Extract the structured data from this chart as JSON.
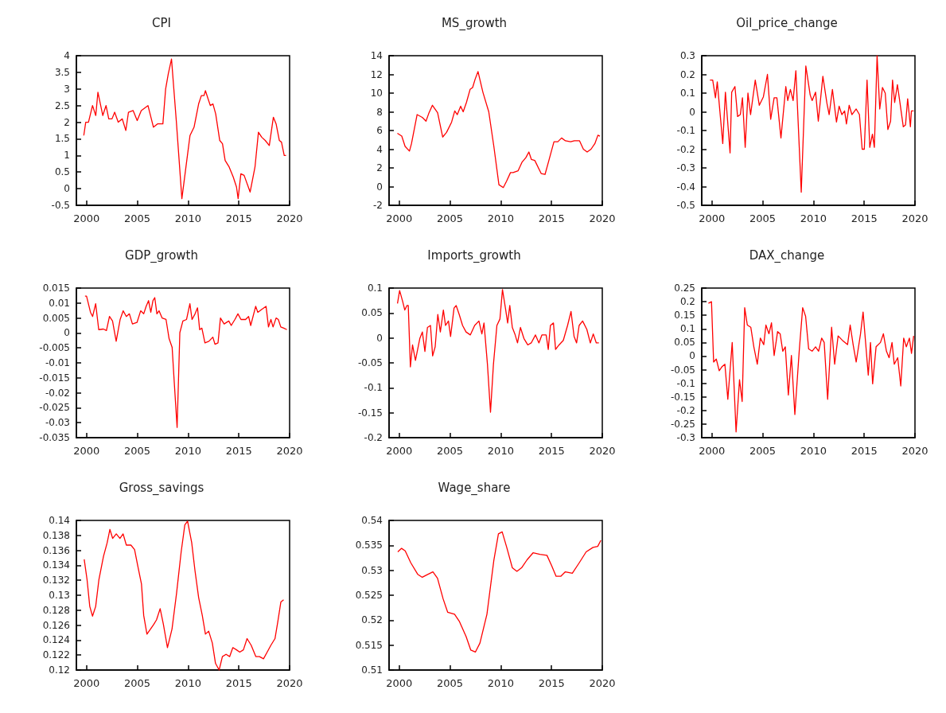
{
  "chart_data": [
    {
      "type": "line",
      "title": "CPI",
      "color": "#ff0000",
      "xlim": [
        1999,
        2020
      ],
      "xticks": [
        2000,
        2005,
        2010,
        2015,
        2020
      ],
      "ylim": [
        -0.5,
        4
      ],
      "yticks": [
        -0.5,
        0,
        0.5,
        1,
        1.5,
        2,
        2.5,
        3,
        3.5,
        4
      ],
      "grid": false,
      "x": [
        1999.73,
        1999.92,
        2000.19,
        2000.59,
        2000.91,
        2001.12,
        2001.6,
        2001.92,
        2002.19,
        2002.51,
        2002.77,
        2003.12,
        2003.52,
        2003.87,
        2004.13,
        2004.59,
        2004.99,
        2005.39,
        2006.05,
        2006.59,
        2006.99,
        2007.52,
        2007.79,
        2008.05,
        2008.37,
        2008.85,
        2009.39,
        2009.79,
        2010.19,
        2010.59,
        2011.04,
        2011.31,
        2011.57,
        2011.71,
        2011.92,
        2012.19,
        2012.45,
        2012.72,
        2013.12,
        2013.39,
        2013.65,
        2014.05,
        2014.45,
        2014.77,
        2014.93,
        2015.2,
        2015.52,
        2016.11,
        2016.59,
        2016.93,
        2017.25,
        2017.6,
        2018,
        2018.4,
        2018.67,
        2018.99,
        2019.2,
        2019.47,
        2019.65
      ],
      "values": [
        1.6,
        2.0,
        2.0,
        2.5,
        2.2,
        2.9,
        2.2,
        2.5,
        2.1,
        2.1,
        2.3,
        2.0,
        2.1,
        1.75,
        2.3,
        2.35,
        2.05,
        2.35,
        2.5,
        1.85,
        1.95,
        1.95,
        3.0,
        3.45,
        3.9,
        2.0,
        -0.3,
        0.65,
        1.6,
        1.85,
        2.55,
        2.8,
        2.8,
        2.95,
        2.75,
        2.5,
        2.55,
        2.25,
        1.45,
        1.35,
        0.85,
        0.65,
        0.35,
        0.05,
        -0.3,
        0.45,
        0.4,
        -0.1,
        0.65,
        1.7,
        1.55,
        1.45,
        1.3,
        2.15,
        1.95,
        1.45,
        1.4,
        1.0,
        1.0
      ]
    },
    {
      "type": "line",
      "title": "MS_growth",
      "color": "#ff0000",
      "xlim": [
        1999,
        2020
      ],
      "xticks": [
        2000,
        2005,
        2010,
        2015,
        2020
      ],
      "ylim": [
        -2,
        14
      ],
      "yticks": [
        -2,
        0,
        2,
        4,
        6,
        8,
        10,
        12,
        14
      ],
      "grid": false,
      "x": [
        1999.82,
        2000.25,
        2000.58,
        2001.01,
        2001.21,
        2001.76,
        2002.27,
        2002.64,
        2002.9,
        2003.27,
        2003.78,
        2004.28,
        2004.66,
        2005.16,
        2005.47,
        2005.72,
        2006.05,
        2006.3,
        2006.62,
        2006.98,
        2007.23,
        2007.48,
        2007.76,
        2008.24,
        2008.82,
        2009.32,
        2009.82,
        2010.25,
        2010.58,
        2010.96,
        2011.21,
        2011.71,
        2012.09,
        2012.47,
        2012.77,
        2013.02,
        2013.35,
        2013.98,
        2014.36,
        2014.74,
        2015.24,
        2015.62,
        2015.99,
        2016.37,
        2016.88,
        2017.25,
        2017.76,
        2018.14,
        2018.51,
        2018.89,
        2019.27,
        2019.57,
        2019.77
      ],
      "values": [
        5.7,
        5.4,
        4.3,
        3.8,
        4.6,
        7.7,
        7.4,
        7.0,
        7.8,
        8.7,
        7.9,
        5.3,
        5.8,
        6.9,
        8.1,
        7.7,
        8.6,
        8.0,
        9.0,
        10.4,
        10.6,
        11.5,
        12.3,
        10.1,
        8.0,
        4.3,
        0.2,
        -0.1,
        0.6,
        1.5,
        1.5,
        1.7,
        2.6,
        3.1,
        3.7,
        2.9,
        2.8,
        1.4,
        1.3,
        2.8,
        4.8,
        4.8,
        5.2,
        4.9,
        4.8,
        4.9,
        4.9,
        4.0,
        3.7,
        4.0,
        4.6,
        5.5,
        5.4
      ]
    },
    {
      "type": "line",
      "title": "Oil_price_change",
      "color": "#ff0000",
      "xlim": [
        1999,
        2020
      ],
      "xticks": [
        2000,
        2005,
        2010,
        2015,
        2020
      ],
      "ylim": [
        -0.5,
        0.3
      ],
      "yticks": [
        -0.5,
        -0.4,
        -0.3,
        -0.2,
        -0.1,
        0,
        0.1,
        0.2,
        0.3
      ],
      "grid": false,
      "x": [
        1999.81,
        2000.08,
        2000.35,
        2000.53,
        2001.07,
        2001.33,
        2001.79,
        2001.95,
        2002.27,
        2002.53,
        2002.8,
        2003.01,
        2003.28,
        2003.55,
        2003.81,
        2004.27,
        2004.67,
        2005.07,
        2005.47,
        2005.79,
        2006.13,
        2006.4,
        2006.8,
        2007.28,
        2007.47,
        2007.73,
        2008,
        2008.27,
        2008.8,
        2009.25,
        2009.68,
        2009.87,
        2010.21,
        2010.48,
        2010.93,
        2011.33,
        2011.55,
        2011.87,
        2012.27,
        2012.53,
        2012.8,
        2013.07,
        2013.25,
        2013.52,
        2013.79,
        2014.21,
        2014.53,
        2014.8,
        2015.01,
        2015.28,
        2015.55,
        2015.81,
        2016,
        2016.27,
        2016.53,
        2016.8,
        2017.07,
        2017.33,
        2017.6,
        2017.79,
        2018,
        2018.27,
        2018.53,
        2018.85,
        2019.07,
        2019.28,
        2019.55,
        2019.65,
        2019.87
      ],
      "values": [
        0.17,
        0.17,
        0.075,
        0.16,
        -0.17,
        0.105,
        -0.22,
        0.105,
        0.135,
        -0.025,
        -0.015,
        0.075,
        -0.19,
        0.1,
        -0.015,
        0.17,
        0.035,
        0.08,
        0.2,
        -0.04,
        0.075,
        0.075,
        -0.14,
        0.135,
        0.06,
        0.12,
        0.06,
        0.22,
        -0.43,
        0.245,
        0.09,
        0.06,
        0.105,
        -0.05,
        0.19,
        0.045,
        -0.015,
        0.12,
        -0.055,
        0.03,
        -0.015,
        0.005,
        -0.065,
        0.035,
        -0.015,
        0.015,
        -0.015,
        -0.2,
        -0.2,
        0.17,
        -0.19,
        -0.12,
        -0.19,
        0.3,
        0.015,
        0.13,
        0.1,
        -0.095,
        -0.05,
        0.17,
        0.05,
        0.145,
        0.045,
        -0.08,
        -0.07,
        0.07,
        -0.08,
        0.005,
        0.005
      ]
    },
    {
      "type": "line",
      "title": "GDP_growth",
      "color": "#ff0000",
      "xlim": [
        1999,
        2020
      ],
      "xticks": [
        2000,
        2005,
        2010,
        2015,
        2020
      ],
      "ylim": [
        -0.035,
        0.015
      ],
      "yticks": [
        -0.035,
        -0.03,
        -0.025,
        -0.02,
        -0.015,
        -0.01,
        -0.005,
        0,
        0.005,
        0.01,
        0.015
      ],
      "grid": false,
      "x": [
        1999.85,
        2000,
        2000.39,
        2000.6,
        2000.9,
        2001.2,
        2001.66,
        2001.96,
        2002.26,
        2002.56,
        2002.92,
        2003.31,
        2003.61,
        2003.92,
        2004.22,
        2004.52,
        2004.97,
        2005.33,
        2005.63,
        2005.87,
        2006.11,
        2006.33,
        2006.54,
        2006.72,
        2006.93,
        2007.14,
        2007.44,
        2007.83,
        2008.13,
        2008.43,
        2008.64,
        2008.92,
        2009.19,
        2009.49,
        2009.85,
        2010.18,
        2010.39,
        2010.69,
        2010.93,
        2011.14,
        2011.36,
        2011.66,
        2012.05,
        2012.44,
        2012.65,
        2012.95,
        2013.19,
        2013.55,
        2014.01,
        2014.25,
        2014.61,
        2014.91,
        2015.21,
        2015.66,
        2015.96,
        2016.17,
        2016.66,
        2016.87,
        2017.26,
        2017.68,
        2017.92,
        2018.16,
        2018.37,
        2018.67,
        2018.89,
        2019.13,
        2019.43,
        2019.73
      ],
      "values": [
        0.0123,
        0.0123,
        0.0069,
        0.0055,
        0.0098,
        0.0011,
        0.0013,
        0.0008,
        0.0055,
        0.004,
        -0.0028,
        0.0045,
        0.0074,
        0.0055,
        0.0064,
        0.003,
        0.0035,
        0.0074,
        0.0064,
        0.0089,
        0.0108,
        0.0069,
        0.0108,
        0.0118,
        0.0064,
        0.0074,
        0.005,
        0.0045,
        -0.0019,
        -0.0048,
        -0.0165,
        -0.0316,
        0.0001,
        0.004,
        0.0045,
        0.0098,
        0.0045,
        0.0064,
        0.0084,
        0.0011,
        0.0016,
        -0.0033,
        -0.0028,
        -0.0014,
        -0.0038,
        -0.0033,
        0.005,
        0.003,
        0.004,
        0.0025,
        0.0045,
        0.0064,
        0.0045,
        0.0045,
        0.0055,
        0.0025,
        0.0089,
        0.0069,
        0.0079,
        0.0089,
        0.002,
        0.0045,
        0.002,
        0.005,
        0.0045,
        0.002,
        0.0016,
        0.0011
      ]
    },
    {
      "type": "line",
      "title": "Imports_growth",
      "color": "#ff0000",
      "xlim": [
        1999,
        2020
      ],
      "xticks": [
        2000,
        2005,
        2010,
        2015,
        2020
      ],
      "ylim": [
        -0.2,
        0.1
      ],
      "yticks": [
        -0.2,
        -0.15,
        -0.1,
        -0.05,
        0,
        0.05,
        0.1
      ],
      "grid": false,
      "x": [
        1999.83,
        2000.04,
        2000.34,
        2000.55,
        2000.76,
        2000.89,
        2001.1,
        2001.31,
        2001.6,
        2002.03,
        2002.28,
        2002.53,
        2002.78,
        2003.08,
        2003.29,
        2003.54,
        2003.8,
        2004.05,
        2004.35,
        2004.56,
        2004.85,
        2005.06,
        2005.4,
        2005.61,
        2005.91,
        2006.24,
        2006.58,
        2007,
        2007.43,
        2007.85,
        2008.14,
        2008.35,
        2008.69,
        2008.99,
        2009.28,
        2009.62,
        2009.92,
        2010.17,
        2010.46,
        2010.68,
        2010.89,
        2011.14,
        2011.39,
        2011.65,
        2011.94,
        2012.28,
        2012.66,
        2013,
        2013.42,
        2013.76,
        2014.05,
        2014.47,
        2014.68,
        2014.89,
        2015.19,
        2015.4,
        2015.74,
        2016.16,
        2016.58,
        2016.92,
        2017.22,
        2017.47,
        2017.72,
        2018.06,
        2018.48,
        2018.82,
        2019.11,
        2019.41,
        2019.66
      ],
      "values": [
        0.069,
        0.095,
        0.073,
        0.056,
        0.065,
        0.065,
        -0.058,
        -0.014,
        -0.045,
        -0.001,
        0.012,
        -0.027,
        0.021,
        0.025,
        -0.036,
        -0.018,
        0.047,
        0.012,
        0.056,
        0.025,
        0.034,
        0.003,
        0.06,
        0.065,
        0.047,
        0.025,
        0.012,
        0.006,
        0.025,
        0.034,
        0.008,
        0.03,
        -0.053,
        -0.149,
        -0.053,
        0.025,
        0.038,
        0.097,
        0.06,
        0.03,
        0.065,
        0.021,
        0.008,
        -0.01,
        0.021,
        -0.001,
        -0.014,
        -0.01,
        0.006,
        -0.01,
        0.006,
        0.006,
        -0.023,
        0.025,
        0.03,
        -0.023,
        -0.014,
        -0.005,
        0.025,
        0.053,
        0.003,
        -0.01,
        0.025,
        0.034,
        0.017,
        -0.01,
        0.008,
        -0.01,
        -0.01
      ]
    },
    {
      "type": "line",
      "title": "DAX_change",
      "color": "#ff0000",
      "xlim": [
        1999,
        2020
      ],
      "xticks": [
        2000,
        2005,
        2010,
        2015,
        2020
      ],
      "ylim": [
        -0.3,
        0.25
      ],
      "yticks": [
        -0.3,
        -0.25,
        -0.2,
        -0.15,
        -0.1,
        -0.05,
        0,
        0.05,
        0.1,
        0.15,
        0.2,
        0.25
      ],
      "grid": false,
      "x": [
        1999.66,
        1999.96,
        2000.17,
        2000.43,
        2000.72,
        2001.02,
        2001.28,
        2001.57,
        2002,
        2002.38,
        2002.72,
        2002.98,
        2003.23,
        2003.49,
        2003.83,
        2004.13,
        2004.47,
        2004.77,
        2005.11,
        2005.32,
        2005.62,
        2005.87,
        2006.13,
        2006.47,
        2006.72,
        2006.98,
        2007.23,
        2007.53,
        2007.83,
        2008.17,
        2008.6,
        2008.94,
        2009.23,
        2009.53,
        2009.87,
        2010.21,
        2010.51,
        2010.81,
        2011.06,
        2011.4,
        2011.79,
        2012.09,
        2012.43,
        2012.85,
        2013.36,
        2013.62,
        2013.91,
        2014.21,
        2014.64,
        2014.89,
        2015.19,
        2015.4,
        2015.62,
        2015.83,
        2016.17,
        2016.6,
        2016.89,
        2017.19,
        2017.45,
        2017.74,
        2017.96,
        2018.3,
        2018.6,
        2018.89,
        2019.15,
        2019.45,
        2019.66,
        2019.87
      ],
      "values": [
        0.194,
        0.2,
        -0.022,
        -0.011,
        -0.054,
        -0.038,
        -0.03,
        -0.159,
        0.05,
        -0.279,
        -0.087,
        -0.167,
        0.178,
        0.114,
        0.106,
        0.034,
        -0.03,
        0.066,
        0.042,
        0.114,
        0.082,
        0.122,
        0.002,
        0.09,
        0.082,
        0.018,
        0.034,
        -0.143,
        0.002,
        -0.215,
        0.018,
        0.178,
        0.146,
        0.026,
        0.018,
        0.034,
        0.018,
        0.066,
        0.05,
        -0.159,
        0.106,
        -0.03,
        0.074,
        0.058,
        0.042,
        0.114,
        0.042,
        -0.022,
        0.082,
        0.162,
        0.026,
        -0.07,
        0.05,
        -0.102,
        0.034,
        0.05,
        0.082,
        0.018,
        -0.006,
        0.05,
        -0.03,
        -0.006,
        -0.11,
        0.066,
        0.034,
        0.066,
        0.01,
        0.074
      ]
    },
    {
      "type": "line",
      "title": "Gross_savings",
      "color": "#ff0000",
      "xlim": [
        1999,
        2020
      ],
      "xticks": [
        2000,
        2005,
        2010,
        2015,
        2020
      ],
      "ylim": [
        0.12,
        0.14
      ],
      "yticks": [
        0.12,
        0.122,
        0.124,
        0.126,
        0.128,
        0.13,
        0.132,
        0.134,
        0.136,
        0.138,
        0.14
      ],
      "grid": false,
      "x": [
        1999.77,
        2000.05,
        2000.32,
        2000.59,
        2000.9,
        2001.22,
        2001.67,
        2002.03,
        2002.3,
        2002.57,
        2002.93,
        2003.29,
        2003.6,
        2003.92,
        2004.37,
        2004.73,
        2005.05,
        2005.41,
        2005.63,
        2005.95,
        2006.31,
        2006.62,
        2006.89,
        2007.25,
        2007.57,
        2007.97,
        2008.42,
        2008.87,
        2009.32,
        2009.68,
        2009.95,
        2010.36,
        2010.68,
        2011.04,
        2011.4,
        2011.71,
        2012.03,
        2012.39,
        2012.7,
        2013.06,
        2013.38,
        2013.74,
        2014.1,
        2014.41,
        2014.77,
        2015.09,
        2015.45,
        2015.81,
        2016.22,
        2016.67,
        2017.03,
        2017.43,
        2017.79,
        2018.15,
        2018.56,
        2018.83,
        2019.14,
        2019.41
      ],
      "values": [
        0.1348,
        0.1321,
        0.1285,
        0.1272,
        0.1285,
        0.1321,
        0.1352,
        0.137,
        0.1388,
        0.1376,
        0.1382,
        0.1376,
        0.1382,
        0.1367,
        0.1367,
        0.1361,
        0.1339,
        0.1315,
        0.1273,
        0.1248,
        0.1255,
        0.1261,
        0.1267,
        0.1282,
        0.1261,
        0.123,
        0.1255,
        0.1303,
        0.1358,
        0.1394,
        0.1399,
        0.137,
        0.1333,
        0.1297,
        0.1273,
        0.1248,
        0.1252,
        0.1236,
        0.1209,
        0.12,
        0.1218,
        0.1221,
        0.1218,
        0.123,
        0.1227,
        0.1224,
        0.1227,
        0.1242,
        0.1233,
        0.1218,
        0.1218,
        0.1215,
        0.1224,
        0.1233,
        0.1242,
        0.1264,
        0.1291,
        0.1294
      ]
    },
    {
      "type": "line",
      "title": "Wage_share",
      "color": "#ff0000",
      "xlim": [
        1999,
        2020
      ],
      "xticks": [
        2000,
        2005,
        2010,
        2015,
        2020
      ],
      "ylim": [
        0.51,
        0.54
      ],
      "yticks": [
        0.51,
        0.515,
        0.52,
        0.525,
        0.53,
        0.535,
        0.54
      ],
      "grid": false,
      "x": [
        1999.86,
        2000.23,
        2000.59,
        2001.14,
        2001.82,
        2002.27,
        2002.73,
        2003.32,
        2003.77,
        2004.32,
        2004.77,
        2005.45,
        2005.91,
        2006.59,
        2007.05,
        2007.5,
        2007.95,
        2008.64,
        2009.32,
        2009.77,
        2010.14,
        2010.59,
        2011.14,
        2011.59,
        2012.05,
        2012.59,
        2013.18,
        2013.86,
        2014.55,
        2015,
        2015.45,
        2015.91,
        2016.36,
        2017.05,
        2017.73,
        2018.41,
        2019.09,
        2019.55,
        2019.86
      ],
      "values": [
        0.5337,
        0.5344,
        0.5339,
        0.5315,
        0.5292,
        0.5286,
        0.5291,
        0.5297,
        0.5284,
        0.5243,
        0.5216,
        0.5212,
        0.5198,
        0.5167,
        0.514,
        0.5136,
        0.5154,
        0.5212,
        0.532,
        0.5373,
        0.5377,
        0.5346,
        0.5305,
        0.5298,
        0.5305,
        0.5321,
        0.5335,
        0.5332,
        0.533,
        0.531,
        0.5288,
        0.5288,
        0.5297,
        0.5294,
        0.5315,
        0.5337,
        0.5346,
        0.5348,
        0.536
      ]
    }
  ]
}
